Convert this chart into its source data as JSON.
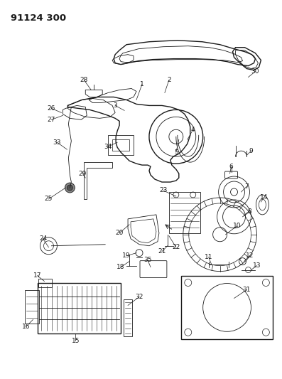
{
  "title": "91124 300",
  "bg": "#ffffff",
  "lc": "#1a1a1a",
  "figsize": [
    3.97,
    5.33
  ],
  "dpi": 100
}
